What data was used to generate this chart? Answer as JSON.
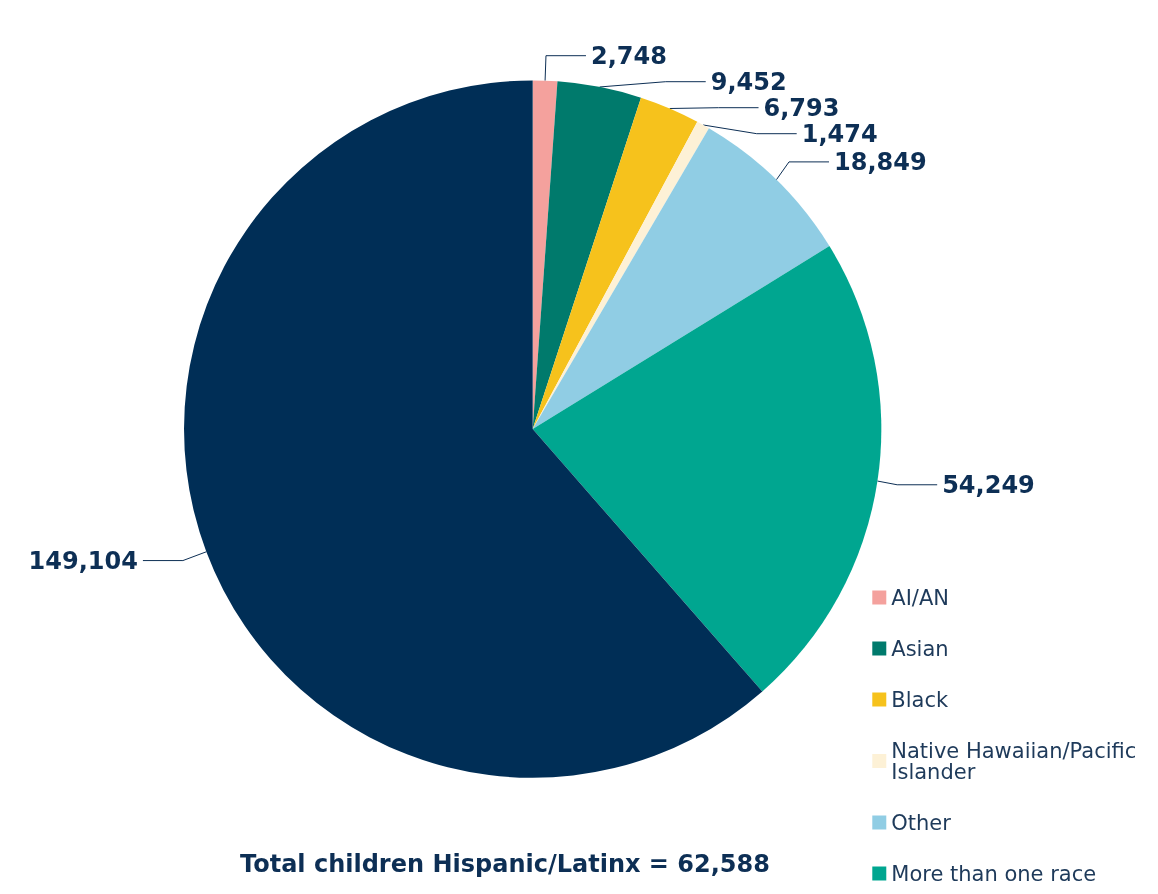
{
  "chart_data": {
    "type": "pie",
    "categories": [
      "AI/AN",
      "Asian",
      "Black",
      "Native Hawaiian/Pacific Islander",
      "Other",
      "More than one race",
      null
    ],
    "values": [
      2748,
      9452,
      6793,
      1474,
      18849,
      54249,
      149104
    ],
    "colors": [
      "#f4a19d",
      "#007a6c",
      "#f6c21c",
      "#fdf1d6",
      "#90cde4",
      "#00a690",
      "#002e56"
    ],
    "value_labels": [
      "2,748",
      "9,452",
      "6,793",
      "1,474",
      "18,849",
      "54,249",
      "149,104"
    ],
    "legend": "bottom right",
    "annotations": [
      "Total children Hispanic/Latinx = 62,588"
    ]
  }
}
